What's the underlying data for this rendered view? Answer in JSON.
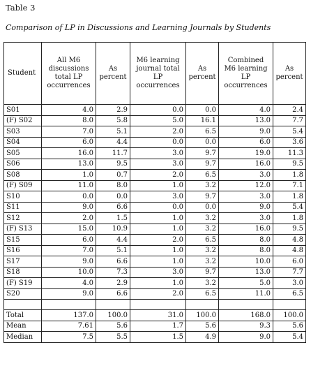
{
  "table_label": "Table 3",
  "caption": "Comparison of LP in Discussions and Learning Journals by Students",
  "columns": [
    "Student",
    "All M6 discussions total LP occurrences",
    "As percent",
    "M6 learning journal total LP occurrences",
    "As percent",
    "Combined M6 learning LP occurrences",
    "As percent"
  ],
  "rows": [
    [
      "S01",
      "4.0",
      "2.9",
      "0.0",
      "0.0",
      "4.0",
      "2.4"
    ],
    [
      "(F) S02",
      "8.0",
      "5.8",
      "5.0",
      "16.1",
      "13.0",
      "7.7"
    ],
    [
      "S03",
      "7.0",
      "5.1",
      "2.0",
      "6.5",
      "9.0",
      "5.4"
    ],
    [
      "S04",
      "6.0",
      "4.4",
      "0.0",
      "0.0",
      "6.0",
      "3.6"
    ],
    [
      "S05",
      "16.0",
      "11.7",
      "3.0",
      "9.7",
      "19.0",
      "11.3"
    ],
    [
      "S06",
      "13.0",
      "9.5",
      "3.0",
      "9.7",
      "16.0",
      "9.5"
    ],
    [
      "S08",
      "1.0",
      "0.7",
      "2.0",
      "6.5",
      "3.0",
      "1.8"
    ],
    [
      "(F) S09",
      "11.0",
      "8.0",
      "1.0",
      "3.2",
      "12.0",
      "7.1"
    ],
    [
      "S10",
      "0.0",
      "0.0",
      "3.0",
      "9.7",
      "3.0",
      "1.8"
    ],
    [
      "S11",
      "9.0",
      "6.6",
      "0.0",
      "0.0",
      "9.0",
      "5.4"
    ],
    [
      "S12",
      "2.0",
      "1.5",
      "1.0",
      "3.2",
      "3.0",
      "1.8"
    ],
    [
      "(F) S13",
      "15.0",
      "10.9",
      "1.0",
      "3.2",
      "16.0",
      "9.5"
    ],
    [
      "S15",
      "6.0",
      "4.4",
      "2.0",
      "6.5",
      "8.0",
      "4.8"
    ],
    [
      "S16",
      "7.0",
      "5.1",
      "1.0",
      "3.2",
      "8.0",
      "4.8"
    ],
    [
      "S17",
      "9.0",
      "6.6",
      "1.0",
      "3.2",
      "10.0",
      "6.0"
    ],
    [
      "S18",
      "10.0",
      "7.3",
      "3.0",
      "9.7",
      "13.0",
      "7.7"
    ],
    [
      "(F) S19",
      "4.0",
      "2.9",
      "1.0",
      "3.2",
      "5.0",
      "3.0"
    ],
    [
      "S20",
      "9.0",
      "6.6",
      "2.0",
      "6.5",
      "11.0",
      "6.5"
    ]
  ],
  "summary_rows": [
    [
      "Total",
      "137.0",
      "100.0",
      "31.0",
      "100.0",
      "168.0",
      "100.0"
    ],
    [
      "Mean",
      "7.61",
      "5.6",
      "1.7",
      "5.6",
      "9.3",
      "5.6"
    ],
    [
      "Median",
      "7.5",
      "5.5",
      "1.5",
      "4.9",
      "9.0",
      "5.4"
    ]
  ]
}
